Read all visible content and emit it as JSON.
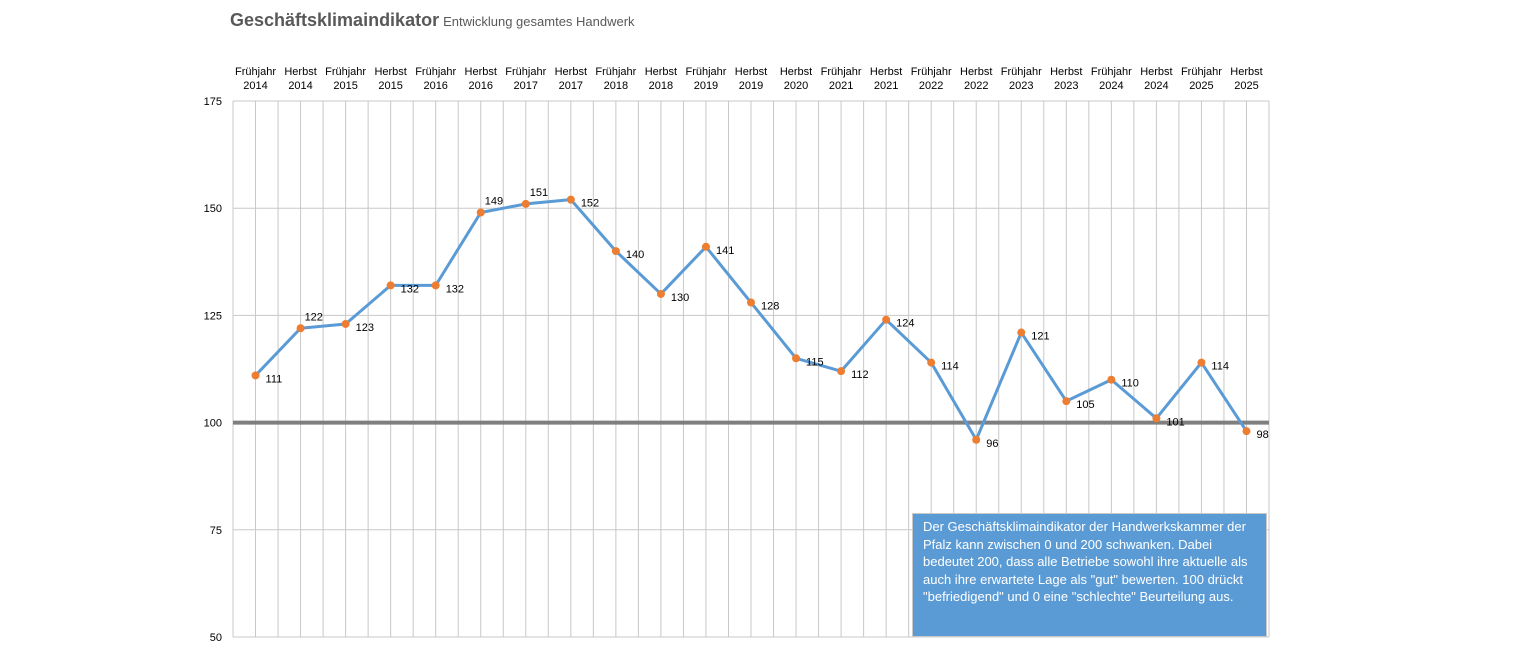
{
  "chart_data": {
    "type": "line",
    "title": "Geschäftsklimaindikator",
    "subtitle": "Entwicklung gesamtes Handwerk",
    "categories": [
      [
        "Frühjahr",
        "2014"
      ],
      [
        "Herbst",
        "2014"
      ],
      [
        "Frühjahr",
        "2015"
      ],
      [
        "Herbst",
        "2015"
      ],
      [
        "Frühjahr",
        "2016"
      ],
      [
        "Herbst",
        "2016"
      ],
      [
        "Frühjahr",
        "2017"
      ],
      [
        "Herbst",
        "2017"
      ],
      [
        "Frühjahr",
        "2018"
      ],
      [
        "Herbst",
        "2018"
      ],
      [
        "Frühjahr",
        "2019"
      ],
      [
        "Herbst",
        "2019"
      ],
      [
        "Herbst",
        "2020"
      ],
      [
        "Frühjahr",
        "2021"
      ],
      [
        "Herbst",
        "2021"
      ],
      [
        "Frühjahr",
        "2022"
      ],
      [
        "Herbst",
        "2022"
      ],
      [
        "Frühjahr",
        "2023"
      ],
      [
        "Herbst",
        "2023"
      ],
      [
        "Frühjahr",
        "2024"
      ],
      [
        "Herbst",
        "2024"
      ],
      [
        "Frühjahr",
        "2025"
      ],
      [
        "Herbst",
        "2025"
      ]
    ],
    "series": [
      {
        "name": "Geschäftsklimaindikator",
        "values": [
          111,
          122,
          123,
          132,
          132,
          149,
          151,
          152,
          140,
          130,
          141,
          128,
          115,
          112,
          124,
          114,
          96,
          121,
          105,
          110,
          101,
          114,
          98
        ]
      }
    ],
    "ylim": [
      50,
      175
    ],
    "yticks": [
      50,
      75,
      100,
      125,
      150,
      175
    ],
    "reference_line": 100,
    "xaxis_position": "top",
    "grid": true,
    "legend": "none",
    "line_color": "#5b9bd5",
    "marker_color": "#ed7d31"
  },
  "note": "Der Geschäftsklimaindikator der Handwerkskammer der Pfalz kann zwischen 0 und 200 schwanken. Dabei bedeutet 200, dass alle Betriebe sowohl ihre aktuelle als auch ihre erwartete Lage als \"gut\" bewerten. 100 drückt \"befriedigend\" und 0 eine \"schlechte\" Beurteilung aus."
}
